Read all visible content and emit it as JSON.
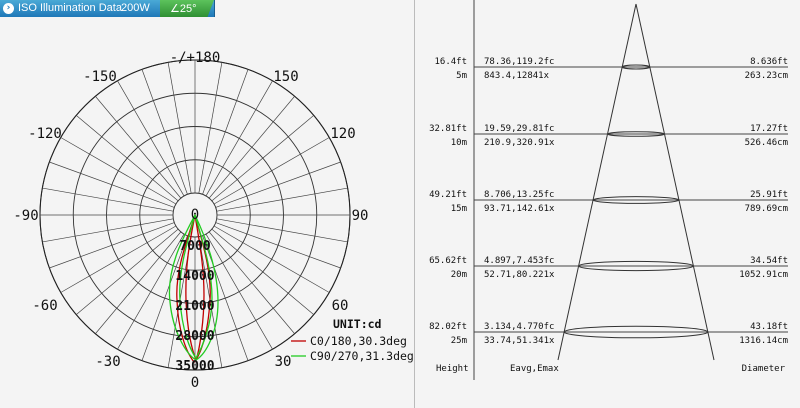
{
  "tabbar": {
    "icon": "info-circle-icon",
    "title": "ISO Illumination  Data",
    "power": "200W",
    "beam_angle": "∠25°"
  },
  "polar": {
    "angle_labels": {
      "top": "-/+180",
      "tl150": "-150",
      "tr150": "150",
      "l120": "-120",
      "r120": "120",
      "l90": "-90",
      "r90": "90",
      "l60": "-60",
      "r60": "60",
      "l30": "-30",
      "r30": "30",
      "bottom": "0",
      "center": "0"
    },
    "radial_labels": [
      "7000",
      "14000",
      "21000",
      "28000",
      "35000"
    ],
    "unit": "UNIT:cd",
    "legend": [
      {
        "label": "C0/180,30.3deg",
        "color": "#c00000"
      },
      {
        "label": "C90/270,31.3deg",
        "color": "#22cc22"
      }
    ]
  },
  "cone": {
    "rows": [
      {
        "height_ft": "16.4ft",
        "height_m": "5m",
        "e_fc": "78.36,119.2fc",
        "e_lx": "843.4,12841x",
        "d_ft": "8.636ft",
        "d_cm": "263.23cm"
      },
      {
        "height_ft": "32.81ft",
        "height_m": "10m",
        "e_fc": "19.59,29.81fc",
        "e_lx": "210.9,320.91x",
        "d_ft": "17.27ft",
        "d_cm": "526.46cm"
      },
      {
        "height_ft": "49.21ft",
        "height_m": "15m",
        "e_fc": "8.706,13.25fc",
        "e_lx": "93.71,142.61x",
        "d_ft": "25.91ft",
        "d_cm": "789.69cm"
      },
      {
        "height_ft": "65.62ft",
        "height_m": "20m",
        "e_fc": "4.897,7.453fc",
        "e_lx": "52.71,80.221x",
        "d_ft": "34.54ft",
        "d_cm": "1052.91cm"
      },
      {
        "height_ft": "82.02ft",
        "height_m": "25m",
        "e_fc": "3.134,4.770fc",
        "e_lx": "33.74,51.341x",
        "d_ft": "43.18ft",
        "d_cm": "1316.14cm"
      }
    ],
    "col_height": "Height",
    "col_eavg": "Eavg,Emax",
    "col_diameter": "Diameter"
  }
}
